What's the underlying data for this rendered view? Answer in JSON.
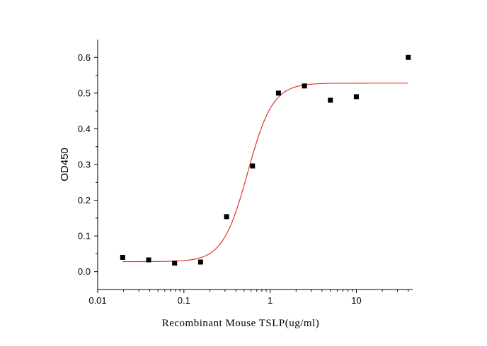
{
  "chart_data": {
    "type": "scatter",
    "xlabel": "Recombinant Mouse TSLP(ug/ml)",
    "ylabel": "OD450",
    "xscale": "log",
    "xlim": [
      0.01,
      45
    ],
    "ylim": [
      -0.05,
      0.65
    ],
    "x_ticks": [
      0.01,
      0.1,
      1,
      10
    ],
    "x_tick_labels": [
      "0.01",
      "0.1",
      "1",
      "10"
    ],
    "y_ticks": [
      0.0,
      0.1,
      0.2,
      0.3,
      0.4,
      0.5,
      0.6
    ],
    "y_tick_labels": [
      "0.0",
      "0.1",
      "0.2",
      "0.3",
      "0.4",
      "0.5",
      "0.6"
    ],
    "grid": false,
    "points": {
      "x": [
        0.0195,
        0.039,
        0.078,
        0.156,
        0.3125,
        0.625,
        1.25,
        2.5,
        5,
        10,
        40
      ],
      "y": [
        0.04,
        0.033,
        0.024,
        0.027,
        0.154,
        0.296,
        0.5,
        0.52,
        0.48,
        0.49,
        0.6
      ],
      "marker": "square",
      "color": "#000000"
    },
    "fit_curve": {
      "model": "4PL",
      "bottom": 0.028,
      "top": 0.528,
      "ec50": 0.55,
      "hill": 3.0,
      "x_range": [
        0.0195,
        40
      ],
      "color": "#e8312a"
    }
  }
}
